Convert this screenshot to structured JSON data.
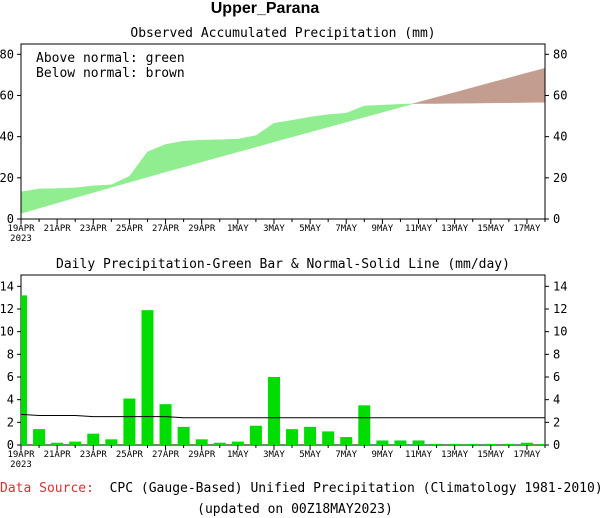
{
  "page_title": "Upper_Parana",
  "colors": {
    "above_normal": "#90ee90",
    "below_normal": "#c39e90",
    "daily_bar": "#00dd00",
    "normal_line": "#000000",
    "source_label": "#e03030"
  },
  "x_tick_labels": [
    "19APR",
    "21APR",
    "23APR",
    "25APR",
    "27APR",
    "29APR",
    "1MAY",
    "3MAY",
    "5MAY",
    "7MAY",
    "9MAY",
    "11MAY",
    "13MAY",
    "15MAY",
    "17MAY"
  ],
  "x_year_label": "2023",
  "chart_data": [
    {
      "type": "area",
      "title": "Observed Accumulated Precipitation (mm)",
      "legend": [
        "Above normal: green",
        "Below normal: brown"
      ],
      "legend_position": "top-left",
      "ylim": [
        0,
        85
      ],
      "yticks": [
        0,
        20,
        40,
        60,
        80
      ],
      "x": [
        "19APR",
        "20APR",
        "21APR",
        "22APR",
        "23APR",
        "24APR",
        "25APR",
        "26APR",
        "27APR",
        "28APR",
        "29APR",
        "30APR",
        "1MAY",
        "2MAY",
        "3MAY",
        "4MAY",
        "5MAY",
        "6MAY",
        "7MAY",
        "8MAY",
        "9MAY",
        "10MAY",
        "11MAY",
        "12MAY",
        "13MAY",
        "14MAY",
        "15MAY",
        "16MAY",
        "17MAY",
        "18MAY"
      ],
      "series": [
        {
          "name": "Observed",
          "values": [
            13.2,
            14.6,
            14.8,
            15.1,
            16.1,
            16.6,
            20.7,
            32.6,
            36.2,
            37.8,
            38.3,
            38.5,
            38.8,
            40.5,
            46.5,
            47.9,
            49.5,
            50.7,
            51.4,
            54.9,
            55.3,
            55.7,
            56.1,
            56.1,
            56.2,
            56.3,
            56.4,
            56.5,
            56.6,
            56.7
          ]
        },
        {
          "name": "Normal",
          "values": [
            2.7,
            5.3,
            7.8,
            10.4,
            12.9,
            15.4,
            17.9,
            20.4,
            22.9,
            25.3,
            27.8,
            30.2,
            32.6,
            35.0,
            37.5,
            39.9,
            42.3,
            44.7,
            47.1,
            49.5,
            51.9,
            54.3,
            56.7,
            59.1,
            61.4,
            63.8,
            66.2,
            68.5,
            70.9,
            73.2
          ]
        }
      ]
    },
    {
      "type": "bar",
      "title": "Daily Precipitation-Green Bar & Normal-Solid Line (mm/day)",
      "ylim": [
        0,
        15
      ],
      "yticks": [
        0,
        2,
        4,
        6,
        8,
        10,
        12,
        14
      ],
      "x": [
        "19APR",
        "20APR",
        "21APR",
        "22APR",
        "23APR",
        "24APR",
        "25APR",
        "26APR",
        "27APR",
        "28APR",
        "29APR",
        "30APR",
        "1MAY",
        "2MAY",
        "3MAY",
        "4MAY",
        "5MAY",
        "6MAY",
        "7MAY",
        "8MAY",
        "9MAY",
        "10MAY",
        "11MAY",
        "12MAY",
        "13MAY",
        "14MAY",
        "15MAY",
        "16MAY",
        "17MAY",
        "18MAY"
      ],
      "series": [
        {
          "name": "Daily",
          "values": [
            13.2,
            1.4,
            0.2,
            0.3,
            1.0,
            0.5,
            4.1,
            11.9,
            3.6,
            1.6,
            0.5,
            0.2,
            0.3,
            1.7,
            6.0,
            1.4,
            1.6,
            1.2,
            0.7,
            3.5,
            0.4,
            0.4,
            0.4,
            0.1,
            0.1,
            0.1,
            0.1,
            0.1,
            0.2,
            0.1
          ]
        },
        {
          "name": "Normal",
          "values": [
            2.7,
            2.6,
            2.6,
            2.6,
            2.5,
            2.5,
            2.5,
            2.5,
            2.5,
            2.4,
            2.4,
            2.4,
            2.4,
            2.4,
            2.4,
            2.4,
            2.4,
            2.4,
            2.4,
            2.4,
            2.4,
            2.4,
            2.4,
            2.4,
            2.4,
            2.4,
            2.4,
            2.4,
            2.4,
            2.4
          ]
        }
      ]
    }
  ],
  "footer": {
    "source_label": "Data Source:",
    "source_text": "CPC (Gauge-Based) Unified Precipitation (Climatology 1981-2010)",
    "updated_text": "(updated on 00Z18MAY2023)"
  }
}
